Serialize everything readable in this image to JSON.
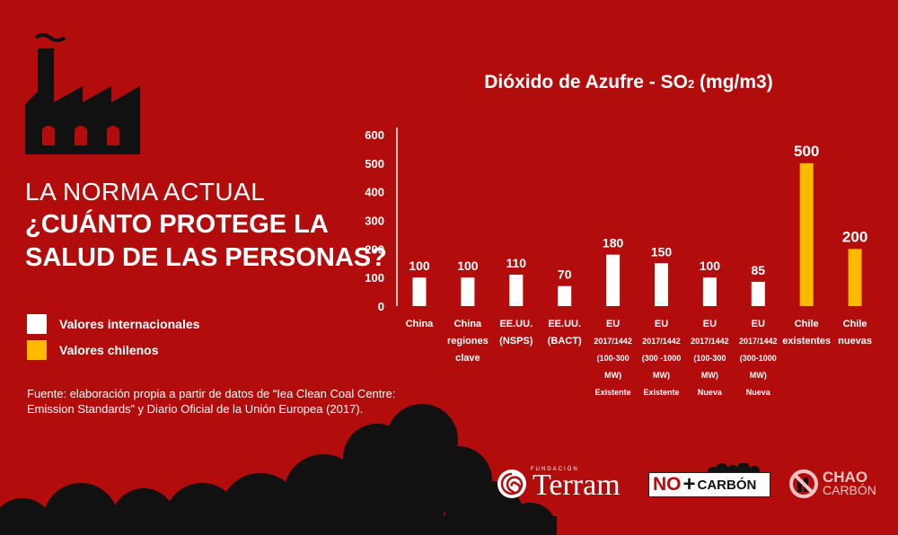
{
  "heading": {
    "light": "LA NORMA ACTUAL",
    "bold_line1": "¿CUÁNTO PROTEGE LA",
    "bold_line2": "SALUD DE LAS PERSONAS?"
  },
  "legend": [
    {
      "label": "Valores internacionales",
      "color": "#ffffff"
    },
    {
      "label": "Valores chilenos",
      "color": "#ffba00"
    }
  ],
  "source": {
    "line1": "Fuente: elaboración propia a partir de datos de “Iea Clean Coal Centre:",
    "line2": "Emission Standards” y Diario Oficial de la Unión Europea (2017)."
  },
  "chart_title": {
    "main": "Dióxido de Azufre - SO",
    "subscript": "2",
    "unit": " (mg/m3)"
  },
  "chart_data": {
    "type": "bar",
    "title": "Dióxido de Azufre - SO2 (mg/m3)",
    "categories": [
      [
        "China"
      ],
      [
        "China",
        "regiones",
        "clave"
      ],
      [
        "EE.UU.",
        "(NSPS)"
      ],
      [
        "EE.UU.",
        "(BACT)"
      ],
      [
        "EU",
        "2017/1442",
        "(100-300",
        "MW)",
        "Existente"
      ],
      [
        "EU",
        "2017/1442",
        "(300 -1000",
        "MW)",
        "Existente"
      ],
      [
        "EU",
        "2017/1442",
        "(100-300",
        "MW)",
        "Nueva"
      ],
      [
        "EU",
        "2017/1442",
        "(300-1000",
        "MW)",
        "Nueva"
      ],
      [
        "Chile",
        "existentes"
      ],
      [
        "Chile",
        "nuevas"
      ]
    ],
    "values": [
      100,
      100,
      110,
      70,
      180,
      150,
      100,
      85,
      500,
      200
    ],
    "value_labels": [
      "100",
      "100",
      "110",
      "70",
      "180",
      "150",
      "100",
      "85",
      "500",
      "200"
    ],
    "groups": [
      "int",
      "int",
      "int",
      "int",
      "int",
      "int",
      "int",
      "int",
      "cl",
      "cl"
    ],
    "colors": {
      "int": "#ffffff",
      "cl": "#ffba00"
    },
    "ylim": [
      0,
      600
    ],
    "yticks": [
      0,
      100,
      200,
      300,
      400,
      500,
      600
    ],
    "grid": false
  },
  "logos": {
    "terram_small": "FUNDACIÓN",
    "terram": "Terram",
    "no": "NO",
    "plus": "+",
    "carbon": "CARBÓN",
    "chao_top": "CHAO",
    "chao_bottom": "CARBÓN"
  }
}
